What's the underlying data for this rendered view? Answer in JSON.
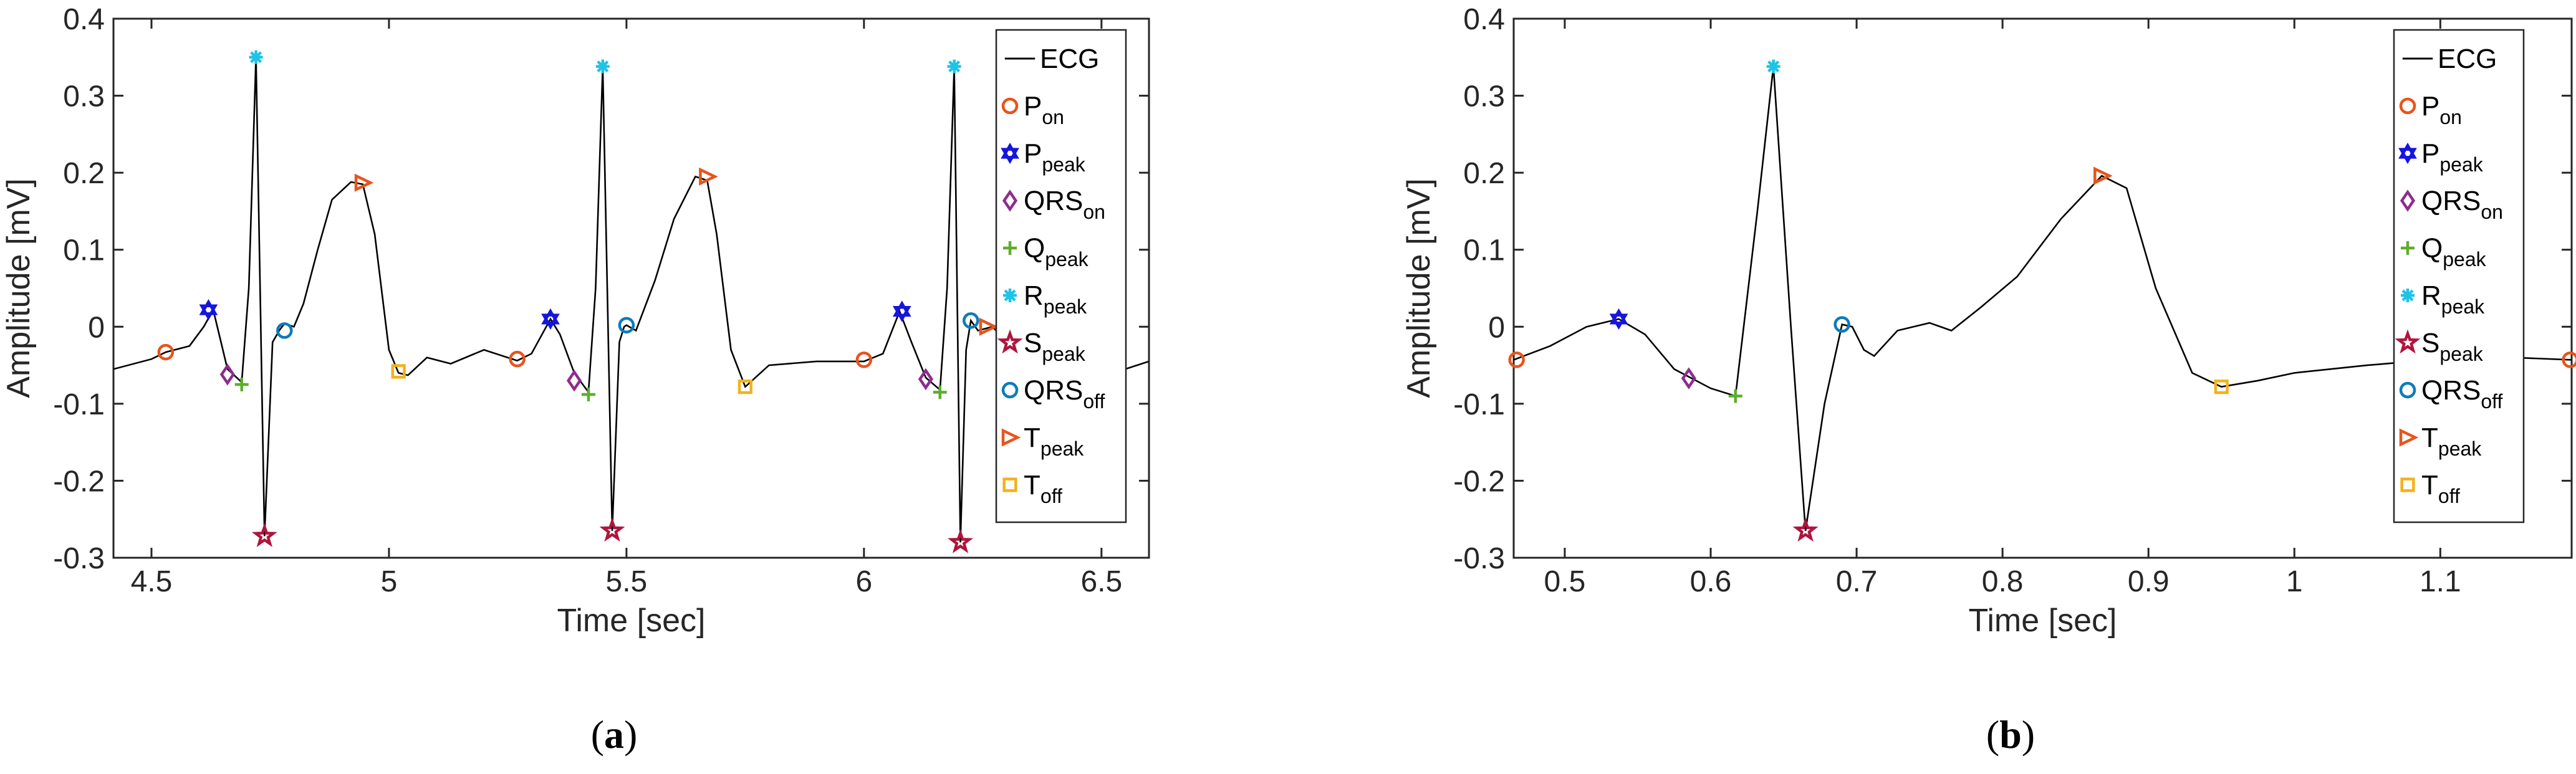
{
  "chart_data": [
    {
      "type": "line",
      "panel_caption": "a",
      "xlabel": "Time [sec]",
      "ylabel": "Amplitude [mV]",
      "xlim": [
        4.42,
        6.6
      ],
      "ylim": [
        -0.3,
        0.4
      ],
      "xticks": [
        4.5,
        5,
        5.5,
        6,
        6.5
      ],
      "xtick_labels": [
        "4.5",
        "5",
        "5.5",
        "6",
        "6.5"
      ],
      "yticks": [
        -0.3,
        -0.2,
        -0.1,
        0,
        0.1,
        0.2,
        0.3,
        0.4
      ],
      "ytick_labels": [
        "-0.3",
        "-0.2",
        "-0.1",
        "0",
        "0.1",
        "0.2",
        "0.3",
        "0.4"
      ],
      "legend_position": "right",
      "ecg_series": {
        "name": "ECG",
        "x": [
          4.42,
          4.5,
          4.53,
          4.58,
          4.61,
          4.63,
          4.66,
          4.69,
          4.705,
          4.72,
          4.738,
          4.755,
          4.77,
          4.78,
          4.8,
          4.82,
          4.85,
          4.88,
          4.92,
          4.945,
          4.97,
          5.0,
          5.02,
          5.04,
          5.08,
          5.13,
          5.2,
          5.27,
          5.3,
          5.34,
          5.36,
          5.39,
          5.42,
          5.435,
          5.45,
          5.47,
          5.485,
          5.495,
          5.5,
          5.52,
          5.56,
          5.6,
          5.645,
          5.67,
          5.69,
          5.72,
          5.75,
          5.8,
          5.9,
          6.0,
          6.04,
          6.075,
          6.1,
          6.13,
          6.16,
          6.175,
          6.19,
          6.203,
          6.215,
          6.225,
          6.24,
          6.27,
          6.32,
          6.4,
          6.5,
          6.6
        ],
        "y": [
          -0.055,
          -0.042,
          -0.033,
          -0.025,
          0.0,
          0.022,
          -0.055,
          -0.072,
          0.05,
          0.35,
          -0.272,
          -0.02,
          -0.004,
          0.004,
          0.0,
          0.03,
          0.1,
          0.165,
          0.188,
          0.185,
          0.12,
          -0.03,
          -0.06,
          -0.063,
          -0.04,
          -0.048,
          -0.03,
          -0.044,
          -0.035,
          0.01,
          -0.01,
          -0.06,
          -0.085,
          0.05,
          0.338,
          -0.265,
          -0.02,
          0.0,
          0.002,
          -0.005,
          0.06,
          0.14,
          0.195,
          0.19,
          0.12,
          -0.03,
          -0.078,
          -0.05,
          -0.045,
          -0.045,
          -0.035,
          0.02,
          -0.02,
          -0.066,
          -0.082,
          0.05,
          0.338,
          -0.28,
          -0.03,
          0.008,
          -0.005,
          0.0,
          -0.03,
          -0.055,
          -0.065,
          -0.045
        ]
      },
      "markers": [
        {
          "name": "P_on",
          "x": [
            4.53,
            5.27,
            6.0
          ],
          "y": [
            -0.033,
            -0.042,
            -0.043
          ]
        },
        {
          "name": "P_peak",
          "x": [
            4.62,
            5.34,
            6.08
          ],
          "y": [
            0.022,
            0.01,
            0.02
          ]
        },
        {
          "name": "QRS_on",
          "x": [
            4.66,
            5.39,
            6.13
          ],
          "y": [
            -0.062,
            -0.07,
            -0.068
          ]
        },
        {
          "name": "Q_peak",
          "x": [
            4.69,
            5.42,
            6.16
          ],
          "y": [
            -0.075,
            -0.088,
            -0.085
          ]
        },
        {
          "name": "R_peak",
          "x": [
            4.72,
            5.45,
            6.19
          ],
          "y": [
            0.35,
            0.338,
            0.338
          ]
        },
        {
          "name": "S_peak",
          "x": [
            4.738,
            5.47,
            6.203
          ],
          "y": [
            -0.272,
            -0.265,
            -0.28
          ]
        },
        {
          "name": "QRS_off",
          "x": [
            4.78,
            5.5,
            6.225
          ],
          "y": [
            -0.005,
            0.002,
            0.008
          ]
        },
        {
          "name": "T_peak",
          "x": [
            4.945,
            5.67,
            6.26
          ],
          "y": [
            0.187,
            0.195,
            0.0
          ]
        },
        {
          "name": "T_off",
          "x": [
            5.02,
            5.75
          ],
          "y": [
            -0.058,
            -0.078
          ]
        }
      ]
    },
    {
      "type": "line",
      "panel_caption": "b",
      "xlabel": "Time [sec]",
      "ylabel": "Amplitude [mV]",
      "xlim": [
        0.465,
        1.19
      ],
      "ylim": [
        -0.3,
        0.4
      ],
      "xticks": [
        0.5,
        0.6,
        0.7,
        0.8,
        0.9,
        1.0,
        1.1
      ],
      "xtick_labels": [
        "0.5",
        "0.6",
        "0.7",
        "0.8",
        "0.9",
        "1",
        "1.1"
      ],
      "yticks": [
        -0.3,
        -0.2,
        -0.1,
        0,
        0.1,
        0.2,
        0.3,
        0.4
      ],
      "ytick_labels": [
        "-0.3",
        "-0.2",
        "-0.1",
        "0",
        "0.1",
        "0.2",
        "0.3",
        "0.4"
      ],
      "legend_position": "right",
      "ecg_series": {
        "name": "ECG",
        "x": [
          0.465,
          0.49,
          0.515,
          0.537,
          0.555,
          0.575,
          0.6,
          0.617,
          0.632,
          0.643,
          0.655,
          0.665,
          0.678,
          0.69,
          0.697,
          0.705,
          0.712,
          0.728,
          0.75,
          0.765,
          0.785,
          0.81,
          0.84,
          0.868,
          0.885,
          0.905,
          0.93,
          0.95,
          0.975,
          1.0,
          1.05,
          1.1,
          1.15,
          1.19
        ],
        "y": [
          -0.043,
          -0.025,
          0.0,
          0.01,
          -0.01,
          -0.055,
          -0.08,
          -0.09,
          0.15,
          0.338,
          0.0,
          -0.265,
          -0.1,
          0.003,
          0.0,
          -0.03,
          -0.038,
          -0.005,
          0.005,
          -0.005,
          0.025,
          0.065,
          0.14,
          0.196,
          0.18,
          0.05,
          -0.06,
          -0.078,
          -0.07,
          -0.06,
          -0.05,
          -0.042,
          -0.04,
          -0.043
        ]
      },
      "markers": [
        {
          "name": "P_on",
          "x": [
            0.467,
            1.189
          ],
          "y": [
            -0.043,
            -0.043
          ]
        },
        {
          "name": "P_peak",
          "x": [
            0.537
          ],
          "y": [
            0.01
          ]
        },
        {
          "name": "QRS_on",
          "x": [
            0.585
          ],
          "y": [
            -0.067
          ]
        },
        {
          "name": "Q_peak",
          "x": [
            0.617
          ],
          "y": [
            -0.09
          ]
        },
        {
          "name": "R_peak",
          "x": [
            0.643
          ],
          "y": [
            0.338
          ]
        },
        {
          "name": "S_peak",
          "x": [
            0.665
          ],
          "y": [
            -0.265
          ]
        },
        {
          "name": "QRS_off",
          "x": [
            0.69
          ],
          "y": [
            0.003
          ]
        },
        {
          "name": "T_peak",
          "x": [
            0.868
          ],
          "y": [
            0.196
          ]
        },
        {
          "name": "T_off",
          "x": [
            0.95
          ],
          "y": [
            -0.078
          ]
        }
      ]
    }
  ],
  "legend": [
    {
      "key": "ECG",
      "main": "ECG",
      "sub": "",
      "marker": "line",
      "color": "#000000"
    },
    {
      "key": "P_on",
      "main": "P",
      "sub": "on",
      "marker": "circle",
      "color": "#E8541C"
    },
    {
      "key": "P_peak",
      "main": "P",
      "sub": "peak",
      "marker": "hexagram",
      "color": "#1515E0"
    },
    {
      "key": "QRS_on",
      "main": "QRS",
      "sub": "on",
      "marker": "diamond",
      "color": "#8E2C8E"
    },
    {
      "key": "Q_peak",
      "main": "Q",
      "sub": "peak",
      "marker": "plus",
      "color": "#5DAE2B"
    },
    {
      "key": "R_peak",
      "main": "R",
      "sub": "peak",
      "marker": "asterisk",
      "color": "#1EC3E8"
    },
    {
      "key": "S_peak",
      "main": "S",
      "sub": "peak",
      "marker": "star",
      "color": "#B0143C"
    },
    {
      "key": "QRS_off",
      "main": "QRS",
      "sub": "off",
      "marker": "circle",
      "color": "#0E7BB8"
    },
    {
      "key": "T_peak",
      "main": "T",
      "sub": "peak",
      "marker": "triangle-right",
      "color": "#E8541C"
    },
    {
      "key": "T_off",
      "main": "T",
      "sub": "off",
      "marker": "square",
      "color": "#F2B21B"
    }
  ],
  "captions": {
    "a": {
      "open": "(",
      "letter": "a",
      "close": ")"
    },
    "b": {
      "open": "(",
      "letter": "b",
      "close": ")"
    }
  }
}
